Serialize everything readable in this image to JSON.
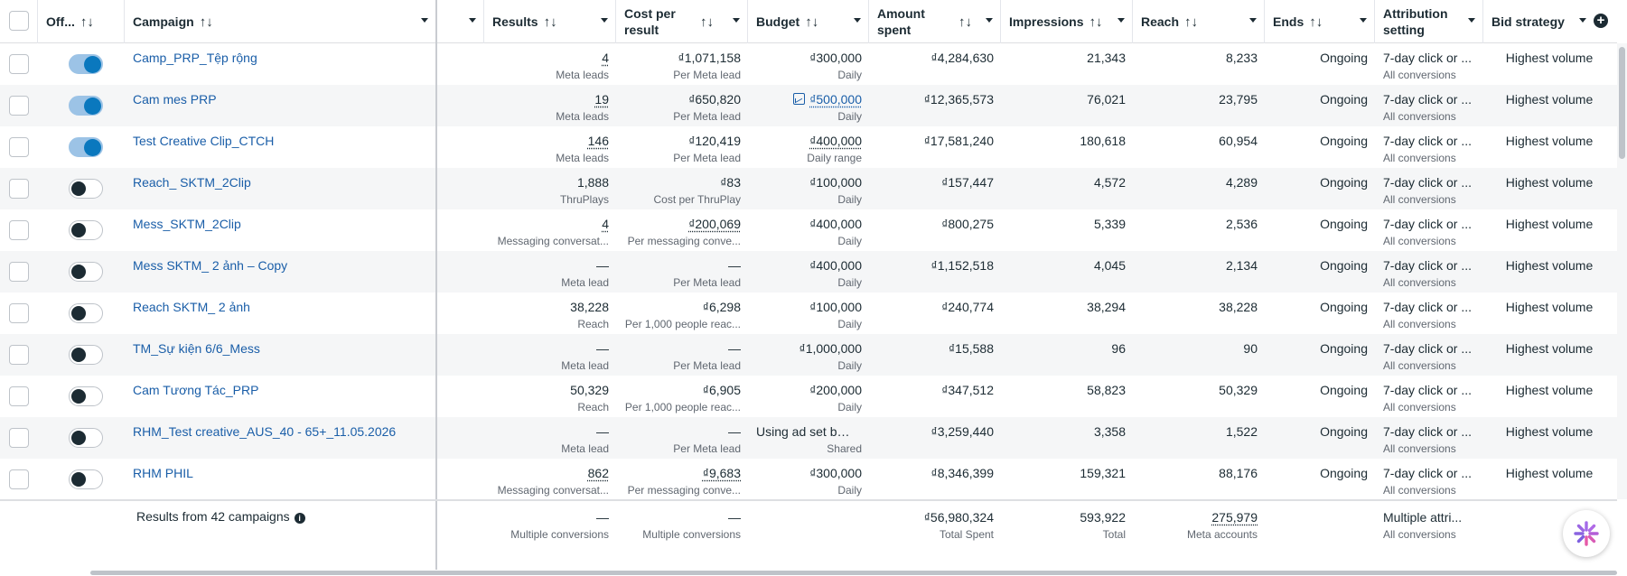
{
  "header": {
    "columns": {
      "off": "Off...",
      "campaign": "Campaign",
      "results": "Results",
      "cost_per_result": "Cost per result",
      "budget": "Budget",
      "amount_spent": "Amount spent",
      "impressions": "Impressions",
      "reach": "Reach",
      "ends": "Ends",
      "attribution": "Attribution setting",
      "bid_strategy": "Bid strategy"
    },
    "sort_glyph": "↑↓"
  },
  "rows": [
    {
      "on": true,
      "campaign": "Camp_PRP_Tệp rộng",
      "results": "4",
      "results_sub": "Meta leads",
      "cpr": "₫1,071,158",
      "cpr_sub": "Per Meta lead",
      "budget": "₫300,000",
      "budget_sub": "Daily",
      "spent": "₫4,284,630",
      "impressions": "21,343",
      "reach": "8,233",
      "ends": "Ongoing",
      "attribution": "7-day click or ...",
      "attribution_sub": "All conversions",
      "bid": "Highest volume"
    },
    {
      "on": true,
      "campaign": "Cam mes PRP",
      "results": "19",
      "results_sub": "Meta leads",
      "cpr": "₫650,820",
      "cpr_sub": "Per Meta lead",
      "budget": "₫500,000",
      "budget_sub": "Daily",
      "budget_link": true,
      "spent": "₫12,365,573",
      "impressions": "76,021",
      "reach": "23,795",
      "ends": "Ongoing",
      "attribution": "7-day click or ...",
      "attribution_sub": "All conversions",
      "bid": "Highest volume"
    },
    {
      "on": true,
      "campaign": "Test Creative Clip_CTCH",
      "results": "146",
      "results_sub": "Meta leads",
      "cpr": "₫120,419",
      "cpr_sub": "Per Meta lead",
      "budget": "₫400,000",
      "budget_sub": "Daily range",
      "spent": "₫17,581,240",
      "impressions": "180,618",
      "reach": "60,954",
      "ends": "Ongoing",
      "attribution": "7-day click or ...",
      "attribution_sub": "All conversions",
      "bid": "Highest volume"
    },
    {
      "on": false,
      "campaign": "Reach_ SKTM_2Clip",
      "results": "1,888",
      "results_sub": "ThruPlays",
      "cpr": "₫83",
      "cpr_sub": "Cost per ThruPlay",
      "budget": "₫100,000",
      "budget_sub": "Daily",
      "spent": "₫157,447",
      "impressions": "4,572",
      "reach": "4,289",
      "ends": "Ongoing",
      "attribution": "7-day click or ...",
      "attribution_sub": "All conversions",
      "bid": "Highest volume"
    },
    {
      "on": false,
      "campaign": "Mess_SKTM_2Clip",
      "results": "4",
      "results_sub": "Messaging conversat...",
      "cpr": "₫200,069",
      "cpr_sub": "Per messaging conve...",
      "budget": "₫400,000",
      "budget_sub": "Daily",
      "spent": "₫800,275",
      "impressions": "5,339",
      "reach": "2,536",
      "ends": "Ongoing",
      "attribution": "7-day click or ...",
      "attribution_sub": "All conversions",
      "bid": "Highest volume"
    },
    {
      "on": false,
      "campaign": "Mess SKTM_ 2 ảnh – Copy",
      "results": "—",
      "results_sub": "Meta lead",
      "cpr": "—",
      "cpr_sub": "Per Meta lead",
      "budget": "₫400,000",
      "budget_sub": "Daily",
      "spent": "₫1,152,518",
      "impressions": "4,045",
      "reach": "2,134",
      "ends": "Ongoing",
      "attribution": "7-day click or ...",
      "attribution_sub": "All conversions",
      "bid": "Highest volume"
    },
    {
      "on": false,
      "campaign": "Reach SKTM_ 2 ảnh",
      "results": "38,228",
      "results_sub": "Reach",
      "cpr": "₫6,298",
      "cpr_sub": "Per 1,000 people reac...",
      "budget": "₫100,000",
      "budget_sub": "Daily",
      "spent": "₫240,774",
      "impressions": "38,294",
      "reach": "38,228",
      "ends": "Ongoing",
      "attribution": "7-day click or ...",
      "attribution_sub": "All conversions",
      "bid": "Highest volume"
    },
    {
      "on": false,
      "campaign": "TM_Sự kiện 6/6_Mess",
      "results": "—",
      "results_sub": "Meta lead",
      "cpr": "—",
      "cpr_sub": "Per Meta lead",
      "budget": "₫1,000,000",
      "budget_sub": "Daily",
      "spent": "₫15,588",
      "impressions": "96",
      "reach": "90",
      "ends": "Ongoing",
      "attribution": "7-day click or ...",
      "attribution_sub": "All conversions",
      "bid": "Highest volume"
    },
    {
      "on": false,
      "campaign": "Cam Tương Tác_PRP",
      "results": "50,329",
      "results_sub": "Reach",
      "cpr": "₫6,905",
      "cpr_sub": "Per 1,000 people reac...",
      "budget": "₫200,000",
      "budget_sub": "Daily",
      "spent": "₫347,512",
      "impressions": "58,823",
      "reach": "50,329",
      "ends": "Ongoing",
      "attribution": "7-day click or ...",
      "attribution_sub": "All conversions",
      "bid": "Highest volume"
    },
    {
      "on": false,
      "campaign": "RHM_Test creative_AUS_40 - 65+_11.05.2026",
      "results": "—",
      "results_sub": "Meta lead",
      "cpr": "—",
      "cpr_sub": "Per Meta lead",
      "budget": "Using ad set bu...",
      "budget_sub": "Shared",
      "budget_left": true,
      "spent": "₫3,259,440",
      "impressions": "3,358",
      "reach": "1,522",
      "ends": "Ongoing",
      "attribution": "7-day click or ...",
      "attribution_sub": "All conversions",
      "bid": "Highest volume"
    },
    {
      "on": false,
      "campaign": "RHM PHIL",
      "results": "862",
      "results_sub": "Messaging conversat...",
      "cpr": "₫9,683",
      "cpr_sub": "Per messaging conve...",
      "budget": "₫300,000",
      "budget_sub": "Daily",
      "spent": "₫8,346,399",
      "impressions": "159,321",
      "reach": "88,176",
      "ends": "Ongoing",
      "attribution": "7-day click or ...",
      "attribution_sub": "All conversions",
      "bid": "Highest volume"
    }
  ],
  "footer": {
    "summary": "Results from 42 campaigns",
    "results": "—",
    "results_sub": "Multiple conversions",
    "cpr": "—",
    "cpr_sub": "Multiple conversions",
    "spent": "₫56,980,324",
    "spent_sub": "Total Spent",
    "impressions": "593,922",
    "impressions_sub": "Total",
    "reach": "275,979",
    "reach_sub": "Meta accounts",
    "attribution": "Multiple attri...",
    "attribution_sub": "All conversions"
  },
  "colors": {
    "link": "#1a5ea8",
    "toggle_on": "#0a78be",
    "text": "#1c2b33",
    "muted": "#606770"
  }
}
